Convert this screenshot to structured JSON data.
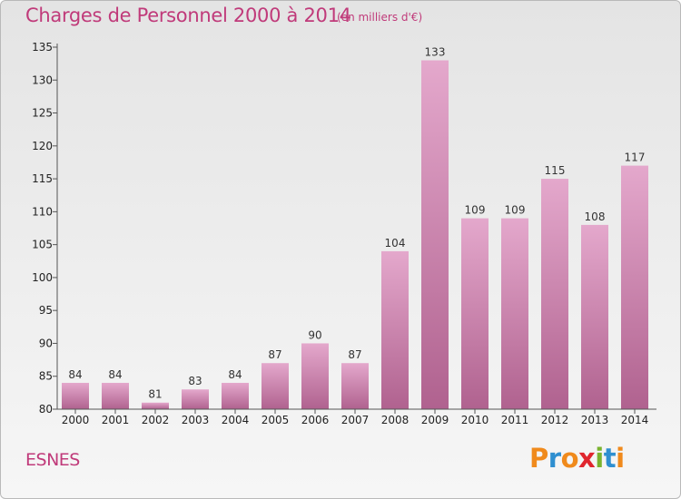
{
  "header": {
    "title": "Charges de Personnel 2000 à 2014",
    "subtitle": "(en milliers d'€)"
  },
  "footer": {
    "commune": "ESNES",
    "logo_text": "Proxiti",
    "logo_colors": [
      "#f08a1c",
      "#2f8fd0",
      "#f08a1c",
      "#e0262e",
      "#7ab32e",
      "#2f8fd0",
      "#f08a1c"
    ]
  },
  "colors": {
    "bar_top": "#e4a8cc",
    "bar_bottom": "#b0628f",
    "accent": "#c03a7a"
  },
  "chart_data": {
    "type": "bar",
    "title": "Charges de Personnel 2000 à 2014",
    "subtitle": "(en milliers d'€)",
    "categories": [
      "2000",
      "2001",
      "2002",
      "2003",
      "2004",
      "2005",
      "2006",
      "2007",
      "2008",
      "2009",
      "2010",
      "2011",
      "2012",
      "2013",
      "2014"
    ],
    "values": [
      84,
      84,
      81,
      83,
      84,
      87,
      90,
      87,
      104,
      133,
      109,
      109,
      115,
      108,
      117
    ],
    "ylim": [
      80,
      135
    ],
    "yticks": [
      80,
      85,
      90,
      95,
      100,
      105,
      110,
      115,
      120,
      125,
      130,
      135
    ],
    "xlabel": "",
    "ylabel": "",
    "grid": false,
    "data_labels": true
  }
}
